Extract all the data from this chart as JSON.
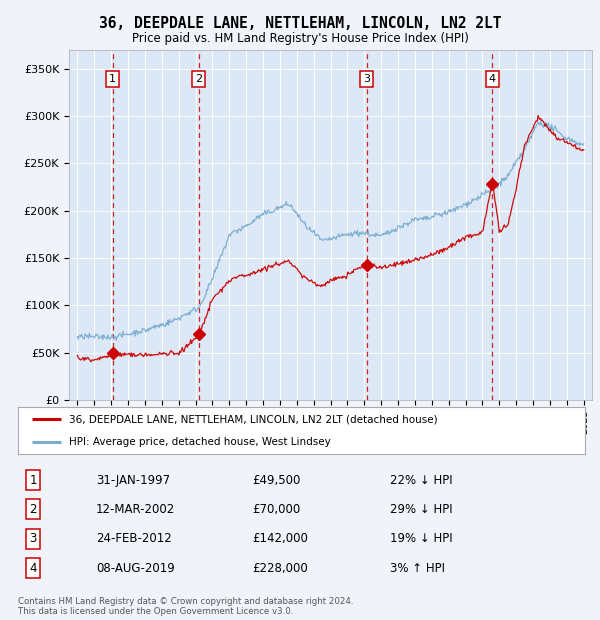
{
  "title": "36, DEEPDALE LANE, NETTLEHAM, LINCOLN, LN2 2LT",
  "subtitle": "Price paid vs. HM Land Registry's House Price Index (HPI)",
  "background_color": "#f0f4fa",
  "plot_bg_color": "#dce8f5",
  "sale_dates": [
    1997.08,
    2002.19,
    2012.15,
    2019.59
  ],
  "sale_prices": [
    49500,
    70000,
    142000,
    228000
  ],
  "sale_labels": [
    "1",
    "2",
    "3",
    "4"
  ],
  "ylabel_ticks": [
    0,
    50000,
    100000,
    150000,
    200000,
    250000,
    300000,
    350000
  ],
  "ylabel_labels": [
    "£0",
    "£50K",
    "£100K",
    "£150K",
    "£200K",
    "£250K",
    "£300K",
    "£350K"
  ],
  "xlim": [
    1994.5,
    2025.5
  ],
  "ylim": [
    0,
    370000
  ],
  "legend_entries": [
    "36, DEEPDALE LANE, NETTLEHAM, LINCOLN, LN2 2LT (detached house)",
    "HPI: Average price, detached house, West Lindsey"
  ],
  "table_rows": [
    [
      "1",
      "31-JAN-1997",
      "£49,500",
      "22% ↓ HPI"
    ],
    [
      "2",
      "12-MAR-2002",
      "£70,000",
      "29% ↓ HPI"
    ],
    [
      "3",
      "24-FEB-2012",
      "£142,000",
      "19% ↓ HPI"
    ],
    [
      "4",
      "08-AUG-2019",
      "£228,000",
      "3% ↑ HPI"
    ]
  ],
  "footer": "Contains HM Land Registry data © Crown copyright and database right 2024.\nThis data is licensed under the Open Government Licence v3.0.",
  "red_color": "#cc0000",
  "blue_color": "#7aaccf",
  "dashed_color": "#cc0000"
}
